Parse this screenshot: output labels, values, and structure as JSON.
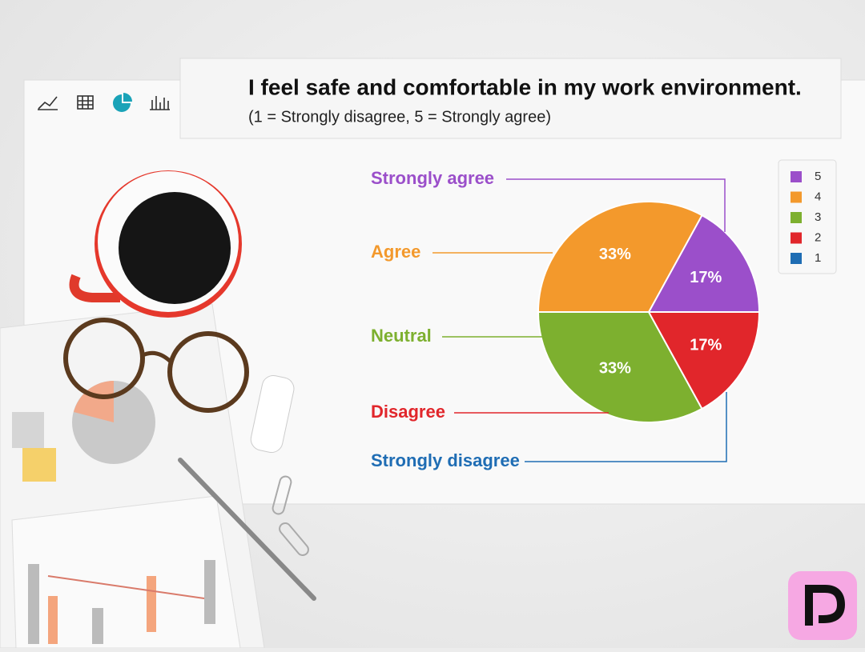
{
  "chart_data": {
    "type": "pie",
    "title": "I feel safe and comfortable in my work environment.",
    "subtitle": "(1 = Strongly disagree, 5 = Strongly agree)",
    "categories": [
      "5",
      "4",
      "3",
      "2",
      "1"
    ],
    "callouts": [
      "Strongly agree",
      "Agree",
      "Neutral",
      "Disagree",
      "Strongly disagree"
    ],
    "values": [
      17,
      33,
      33,
      17,
      0
    ],
    "value_labels": [
      "17%",
      "33%",
      "33%",
      "17%",
      null
    ],
    "colors": [
      "#9b4fca",
      "#f3992c",
      "#7db02f",
      "#e1262b",
      "#1f6db4"
    ],
    "legend": "top-right"
  }
}
